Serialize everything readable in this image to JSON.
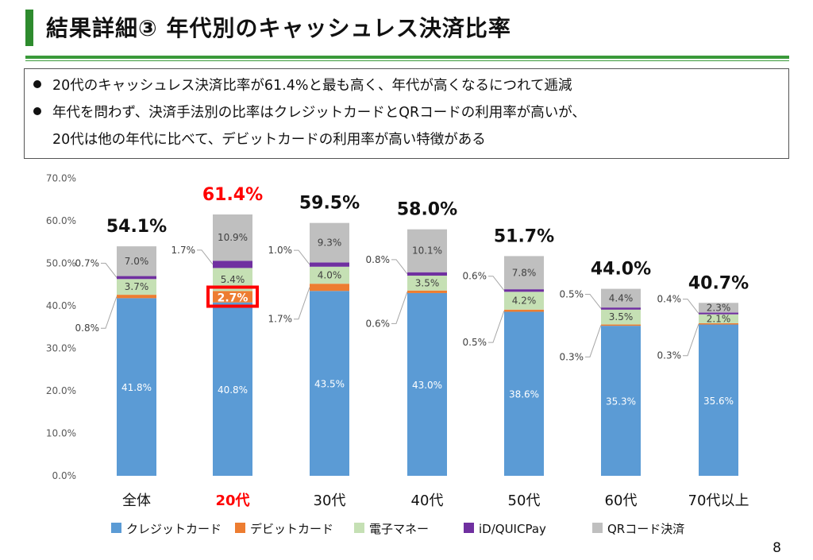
{
  "header": {
    "title": "結果詳細③ 年代別のキャッシュレス決済比率"
  },
  "summary": {
    "bullets": [
      "20代のキャッシュレス決済比率が61.4%と最も高く、年代が高くなるにつれて逓減",
      "年代を問わず、決済手法別の比率はクレジットカードとQRコードの利用率が高いが、",
      "20代は他の年代に比べて、デビットカードの利用率が高い特徴がある"
    ]
  },
  "page_number": "8",
  "chart_data": {
    "type": "bar",
    "stacked": true,
    "categories": [
      "全体",
      "20代",
      "30代",
      "40代",
      "50代",
      "60代",
      "70代以上"
    ],
    "highlight_category": "20代",
    "highlight_segment": {
      "category": "20代",
      "series": "デビットカード"
    },
    "ylim": [
      0,
      70
    ],
    "yticks": [
      "0.0%",
      "10.0%",
      "20.0%",
      "30.0%",
      "40.0%",
      "50.0%",
      "60.0%",
      "70.0%"
    ],
    "series": [
      {
        "name": "クレジットカード",
        "color": "#5b9bd5",
        "values": [
          41.8,
          40.8,
          43.5,
          43.0,
          38.6,
          35.3,
          35.6
        ],
        "labels": [
          "41.8%",
          "40.8%",
          "43.5%",
          "43.0%",
          "38.6%",
          "35.3%",
          "35.6%"
        ]
      },
      {
        "name": "デビットカード",
        "color": "#ed7d31",
        "values": [
          0.8,
          2.7,
          1.7,
          0.6,
          0.5,
          0.3,
          0.3
        ],
        "labels": [
          "0.8%",
          "2.7%",
          "1.7%",
          "0.6%",
          "0.5%",
          "0.3%",
          "0.3%"
        ]
      },
      {
        "name": "電子マネー",
        "color": "#c5e0b4",
        "values": [
          3.7,
          5.4,
          4.0,
          3.5,
          4.2,
          3.5,
          2.1
        ],
        "labels": [
          "3.7%",
          "5.4%",
          "4.0%",
          "3.5%",
          "4.2%",
          "3.5%",
          "2.1%"
        ]
      },
      {
        "name": "iD/QUICPay",
        "color": "#7030a0",
        "values": [
          0.7,
          1.7,
          1.0,
          0.8,
          0.6,
          0.5,
          0.4
        ],
        "labels": [
          "0.7%",
          "1.7%",
          "1.0%",
          "0.8%",
          "0.6%",
          "0.5%",
          "0.4%"
        ]
      },
      {
        "name": "QRコード決済",
        "color": "#bfbfbf",
        "values": [
          7.0,
          10.9,
          9.3,
          10.1,
          7.8,
          4.4,
          2.3
        ],
        "labels": [
          "7.0%",
          "10.9%",
          "9.3%",
          "10.1%",
          "7.8%",
          "4.4%",
          "2.3%"
        ]
      }
    ],
    "totals": [
      "54.1%",
      "61.4%",
      "59.5%",
      "58.0%",
      "51.7%",
      "44.0%",
      "40.7%"
    ]
  },
  "colors": {
    "accent_green": "#3a9a3a",
    "highlight_red": "#ff0000"
  }
}
